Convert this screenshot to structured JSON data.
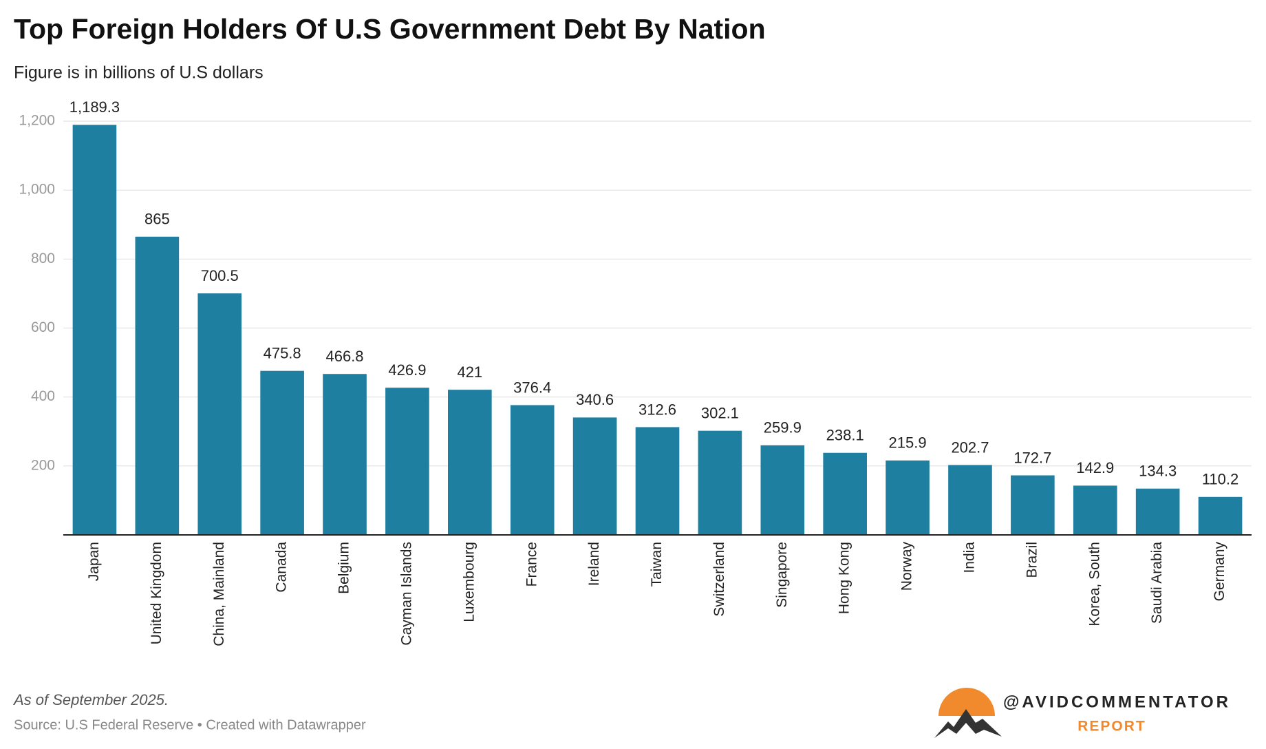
{
  "chart_data": {
    "type": "bar",
    "title": "Top Foreign Holders Of U.S Government Debt By Nation",
    "subtitle": "Figure is in billions of U.S dollars",
    "categories": [
      "Japan",
      "United Kingdom",
      "China, Mainland",
      "Canada",
      "Belgium",
      "Cayman Islands",
      "Luxembourg",
      "France",
      "Ireland",
      "Taiwan",
      "Switzerland",
      "Singapore",
      "Hong Kong",
      "Norway",
      "India",
      "Brazil",
      "Korea, South",
      "Saudi Arabia",
      "Germany"
    ],
    "values": [
      1189.3,
      865,
      700.5,
      475.8,
      466.8,
      426.9,
      421,
      376.4,
      340.6,
      312.6,
      302.1,
      259.9,
      238.1,
      215.9,
      202.7,
      172.7,
      142.9,
      134.3,
      110.2
    ],
    "value_labels": [
      "1,189.3",
      "865",
      "700.5",
      "475.8",
      "466.8",
      "426.9",
      "421",
      "376.4",
      "340.6",
      "312.6",
      "302.1",
      "259.9",
      "238.1",
      "215.9",
      "202.7",
      "172.7",
      "142.9",
      "134.3",
      "110.2"
    ],
    "color": "#1e7fa1",
    "ylim": [
      0,
      1200
    ],
    "yticks": [
      200,
      400,
      600,
      800,
      {
        "value": 1000,
        "label": "1,000"
      },
      {
        "value": 1200,
        "label": "1,200"
      }
    ],
    "grid": true
  },
  "footer": {
    "note": "As of September 2025.",
    "source": "Source: U.S Federal Reserve • Created with Datawrapper"
  },
  "logo": {
    "handle": "@AVIDCOMMENTATOR",
    "tag": "REPORT"
  }
}
